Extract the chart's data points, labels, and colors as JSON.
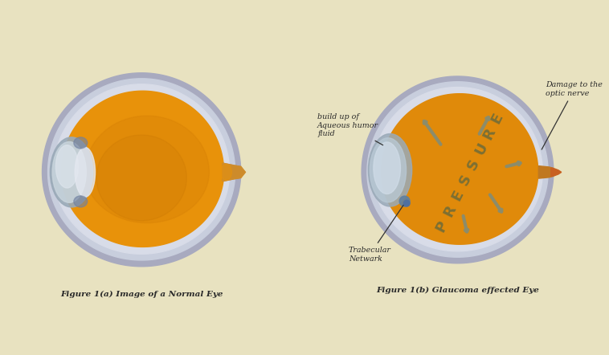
{
  "bg_color": "#E8E2C0",
  "fig_caption_left": "Figure 1(a) Image of a Normal Eye",
  "fig_caption_right": "Figure 1(b) Glaucoma effected Eye",
  "caption_color": "#2a2a2a",
  "caption_fontsize": 7.5,
  "eye_orange": "#E8920A",
  "eye_orange_inner": "#D07B05",
  "eye_sclera_outer": "#B8BDD0",
  "eye_sclera_mid": "#CDD0E0",
  "eye_sclera_inner": "#D8DCE8",
  "cornea_outer": "#9BAAB8",
  "cornea_inner": "#C8D4DC",
  "lens_white": "#E0E4EC",
  "nerve_orange": "#D08520",
  "nerve_orange2": "#C07810",
  "pressure_text": "PRESSURE",
  "pressure_color": "#6B6B3A",
  "arrow_color": "#8C8C6A",
  "annotation_color": "#2a2a2a",
  "annotation1": "build up of\nAqueous humor\nfluid",
  "annotation2": "Trabecular\nNetwark",
  "annotation3": "Damage to the\noptic nerve",
  "trab_color": "#7090A8",
  "glaucoma_orange": "#E08A0A"
}
